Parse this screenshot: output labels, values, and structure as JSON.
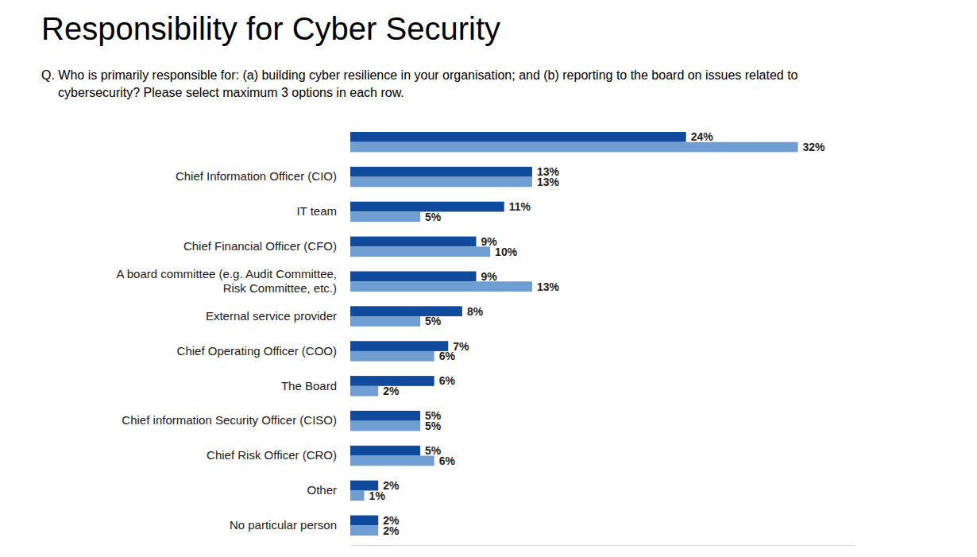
{
  "chart_data": {
    "type": "bar",
    "orientation": "horizontal",
    "title": "Responsibility for Cyber Security",
    "subtitle": "Q. Who is primarily responsible for: (a) building cyber resilience in your organisation; and (b) reporting to the board on issues related to\ncybersecurity? Please select maximum 3 options in each row.",
    "categories": [
      null,
      "Chief Information Officer (CIO)",
      "IT team",
      "Chief Financial Officer (CFO)",
      "A board committee (e.g. Audit Committee,\nRisk Committee, etc.)",
      "External service provider",
      "Chief Operating Officer (COO)",
      "The Board",
      "Chief information Security Officer (CISO)",
      "Chief Risk Officer (CRO)",
      "Other",
      "No particular person"
    ],
    "series": [
      {
        "color": "#0f4a9c",
        "values": [
          24,
          13,
          11,
          9,
          9,
          8,
          7,
          6,
          5,
          5,
          2,
          2
        ],
        "value_labels": [
          "24%",
          "13%",
          "11%",
          "9%",
          "9%",
          "8%",
          "7%",
          "6%",
          "5%",
          "5%",
          "2%",
          "2%"
        ]
      },
      {
        "color": "#6f9fd2",
        "values": [
          32,
          13,
          5,
          10,
          13,
          5,
          6,
          2,
          5,
          6,
          1,
          2
        ],
        "value_labels": [
          "32%",
          "13%",
          "5%",
          "10%",
          "13%",
          "5%",
          "6%",
          "2%",
          "5%",
          "6%",
          "1%",
          "2%"
        ]
      }
    ],
    "xlim": [
      0,
      36
    ],
    "xticks": [],
    "data_labels": true,
    "tick_labels": false
  }
}
